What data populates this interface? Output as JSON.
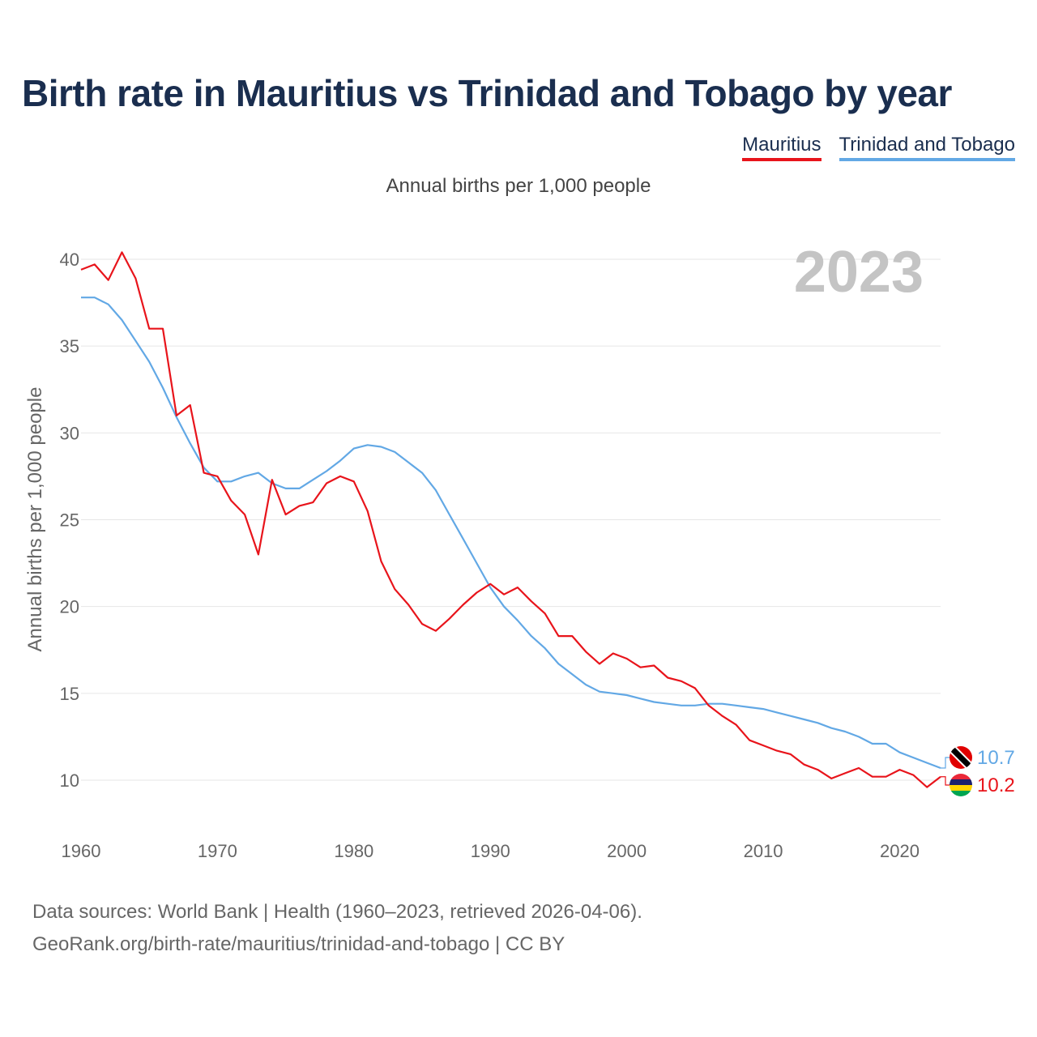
{
  "header": {
    "title": "Birth rate in Mauritius vs Trinidad and Tobago by year"
  },
  "footer": {
    "line1": "Data sources: World Bank | Health (1960–2023, retrieved 2026-04-06).",
    "line2": "GeoRank.org/birth-rate/mauritius/trinidad-and-tobago | CC BY"
  },
  "chart_data": {
    "type": "line",
    "title": "Birth rate in Mauritius vs Trinidad and Tobago by year",
    "subtitle": "Annual births per 1,000 people",
    "ylabel": "Annual births per 1,000 people",
    "xlabel": "",
    "year_marker": "2023",
    "xlim": [
      1960,
      2023
    ],
    "ylim": [
      7,
      42
    ],
    "xticks": [
      1960,
      1970,
      1980,
      1990,
      2000,
      2010,
      2020
    ],
    "yticks": [
      10,
      15,
      20,
      25,
      30,
      35,
      40
    ],
    "grid": true,
    "legend_position": "top-right",
    "x_start": 1960,
    "series": [
      {
        "name": "Mauritius",
        "color": "#e8141b",
        "end_label": "10.2",
        "values": [
          39.4,
          39.7,
          38.8,
          40.4,
          38.9,
          36.0,
          36.0,
          31.0,
          31.6,
          27.7,
          27.5,
          26.1,
          25.3,
          23.0,
          27.3,
          25.3,
          25.8,
          26.0,
          27.1,
          27.5,
          27.2,
          25.5,
          22.6,
          21.0,
          20.1,
          19.0,
          18.6,
          19.3,
          20.1,
          20.8,
          21.3,
          20.7,
          21.1,
          20.3,
          19.6,
          18.3,
          18.3,
          17.4,
          16.7,
          17.3,
          17.0,
          16.5,
          16.6,
          15.9,
          15.7,
          15.3,
          14.3,
          13.7,
          13.2,
          12.3,
          12.0,
          11.7,
          11.5,
          10.9,
          10.6,
          10.1,
          10.4,
          10.7,
          10.2,
          10.2,
          10.6,
          10.3,
          9.6,
          10.2
        ]
      },
      {
        "name": "Trinidad and Tobago",
        "color": "#62a8e5",
        "end_label": "10.7",
        "values": [
          37.8,
          37.8,
          37.4,
          36.5,
          35.3,
          34.1,
          32.6,
          30.9,
          29.4,
          28.0,
          27.2,
          27.2,
          27.5,
          27.7,
          27.1,
          26.8,
          26.8,
          27.3,
          27.8,
          28.4,
          29.1,
          29.3,
          29.2,
          28.9,
          28.3,
          27.7,
          26.7,
          25.3,
          23.9,
          22.5,
          21.1,
          20.0,
          19.2,
          18.3,
          17.6,
          16.7,
          16.1,
          15.5,
          15.1,
          15.0,
          14.9,
          14.7,
          14.5,
          14.4,
          14.3,
          14.3,
          14.4,
          14.4,
          14.3,
          14.2,
          14.1,
          13.9,
          13.7,
          13.5,
          13.3,
          13.0,
          12.8,
          12.5,
          12.1,
          12.1,
          11.6,
          11.3,
          11.0,
          10.7
        ]
      }
    ]
  }
}
